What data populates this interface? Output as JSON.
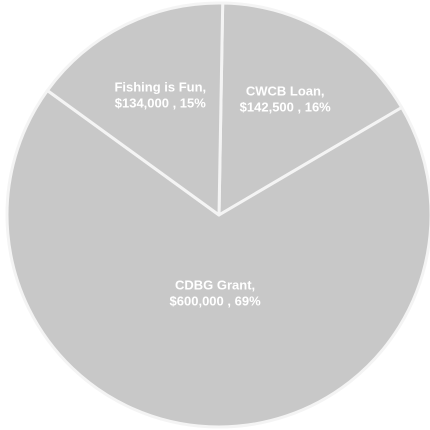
{
  "chart_data": {
    "type": "pie",
    "title": "",
    "slices": [
      {
        "label_line1": "CWCB Loan,",
        "label_line2": "$142,500 , 16%",
        "value": 142500,
        "percent": 16
      },
      {
        "label_line1": "CDBG Grant,",
        "label_line2": "$600,000 , 69%",
        "value": 600000,
        "percent": 69
      },
      {
        "label_line1": "Fishing is Fun,",
        "label_line2": "$134,000 , 15%",
        "value": 134000,
        "percent": 15
      }
    ],
    "slice_fill": "#c8c8c8",
    "slice_border": "#f4f4f4",
    "label_color": "#ffffff",
    "legend": "none"
  }
}
